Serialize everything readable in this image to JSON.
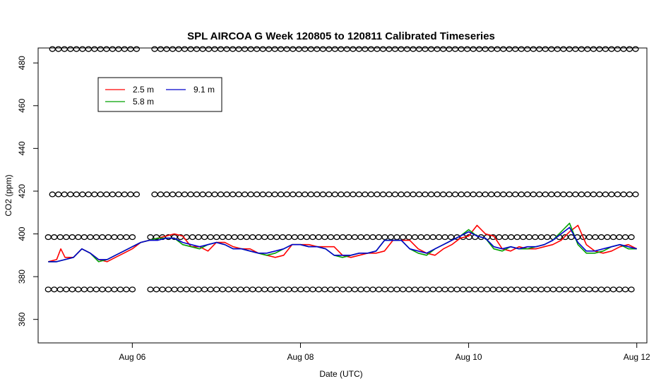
{
  "chart_data": {
    "type": "line",
    "title": "SPL AIRCOA G  Week 120805 to 120811  Calibrated Timeseries",
    "xlabel": "Date (UTC)",
    "ylabel": "CO2 (ppm)",
    "xlim": [
      0,
      7.0
    ],
    "ylim": [
      350,
      490
    ],
    "x_ticks": [
      {
        "value": 1,
        "label": "Aug 06"
      },
      {
        "value": 3,
        "label": "Aug 08"
      },
      {
        "value": 5,
        "label": "Aug 10"
      },
      {
        "value": 7,
        "label": "Aug 12"
      }
    ],
    "y_ticks": [
      {
        "value": 360,
        "label": "360"
      },
      {
        "value": 380,
        "label": "380"
      },
      {
        "value": 400,
        "label": "400"
      },
      {
        "value": 420,
        "label": "420"
      },
      {
        "value": 440,
        "label": "440"
      },
      {
        "value": 460,
        "label": "460"
      },
      {
        "value": 480,
        "label": "480"
      }
    ],
    "grid": false,
    "legend": "top-left",
    "series": [
      {
        "name": "2.5 m",
        "color": "#ff0000",
        "x": [
          0,
          0.1,
          0.15,
          0.2,
          0.3,
          0.4,
          0.5,
          0.6,
          0.7,
          0.8,
          0.9,
          1.0,
          1.1,
          1.2,
          1.3,
          1.4,
          1.5,
          1.6,
          1.7,
          1.8,
          1.9,
          2.0,
          2.1,
          2.2,
          2.3,
          2.4,
          2.5,
          2.6,
          2.7,
          2.8,
          2.9,
          3.0,
          3.1,
          3.2,
          3.3,
          3.4,
          3.5,
          3.6,
          3.7,
          3.8,
          3.9,
          4.0,
          4.1,
          4.2,
          4.3,
          4.4,
          4.5,
          4.6,
          4.7,
          4.8,
          4.9,
          5.0,
          5.1,
          5.2,
          5.3,
          5.4,
          5.5,
          5.6,
          5.7,
          5.8,
          5.9,
          6.0,
          6.1,
          6.2,
          6.3,
          6.4,
          6.5,
          6.6,
          6.7,
          6.8,
          6.9,
          7.0
        ],
        "values": [
          387,
          388,
          393,
          389,
          389,
          393,
          391,
          388,
          387,
          389,
          391,
          393,
          396,
          397,
          398,
          399,
          400,
          399,
          394,
          394,
          392,
          396,
          396,
          394,
          393,
          393,
          391,
          390,
          389,
          390,
          395,
          395,
          395,
          394,
          394,
          394,
          390,
          389,
          390,
          391,
          391,
          392,
          397,
          397,
          397,
          393,
          391,
          390,
          393,
          395,
          398,
          399,
          404,
          400,
          399,
          393,
          392,
          394,
          393,
          393,
          394,
          395,
          397,
          401,
          404,
          395,
          392,
          391,
          392,
          394,
          395,
          393
        ]
      },
      {
        "name": "5.8 m",
        "color": "#00a000",
        "x": [
          0,
          0.1,
          0.2,
          0.3,
          0.4,
          0.5,
          0.6,
          0.7,
          0.8,
          0.9,
          1.0,
          1.1,
          1.2,
          1.3,
          1.4,
          1.5,
          1.6,
          1.7,
          1.8,
          1.9,
          2.0,
          2.1,
          2.2,
          2.3,
          2.4,
          2.5,
          2.6,
          2.7,
          2.8,
          2.9,
          3.0,
          3.1,
          3.2,
          3.3,
          3.4,
          3.5,
          3.6,
          3.7,
          3.8,
          3.9,
          4.0,
          4.1,
          4.2,
          4.3,
          4.4,
          4.5,
          4.6,
          4.7,
          4.8,
          4.9,
          5.0,
          5.1,
          5.2,
          5.3,
          5.4,
          5.5,
          5.6,
          5.7,
          5.8,
          5.9,
          6.0,
          6.1,
          6.2,
          6.3,
          6.4,
          6.5,
          6.6,
          6.7,
          6.8,
          6.9,
          7.0
        ],
        "values": [
          387,
          387,
          388,
          389,
          393,
          391,
          387,
          388,
          390,
          392,
          394,
          396,
          397,
          398,
          398,
          398,
          395,
          394,
          393,
          395,
          396,
          395,
          393,
          393,
          392,
          391,
          390,
          391,
          393,
          395,
          395,
          394,
          394,
          393,
          390,
          389,
          390,
          391,
          391,
          392,
          397,
          397,
          397,
          393,
          391,
          390,
          393,
          395,
          397,
          399,
          402,
          399,
          398,
          393,
          392,
          394,
          393,
          393,
          394,
          395,
          397,
          401,
          405,
          395,
          391,
          391,
          392,
          394,
          395,
          393,
          393
        ]
      },
      {
        "name": "9.1 m",
        "color": "#0000cc",
        "x": [
          0,
          0.1,
          0.2,
          0.3,
          0.4,
          0.5,
          0.6,
          0.7,
          0.8,
          0.9,
          1.0,
          1.1,
          1.2,
          1.3,
          1.4,
          1.5,
          1.6,
          1.7,
          1.8,
          1.9,
          2.0,
          2.1,
          2.2,
          2.3,
          2.4,
          2.5,
          2.6,
          2.7,
          2.8,
          2.9,
          3.0,
          3.1,
          3.2,
          3.3,
          3.4,
          3.5,
          3.6,
          3.7,
          3.8,
          3.9,
          4.0,
          4.1,
          4.2,
          4.3,
          4.4,
          4.5,
          4.6,
          4.7,
          4.8,
          4.9,
          5.0,
          5.1,
          5.2,
          5.3,
          5.4,
          5.5,
          5.6,
          5.7,
          5.8,
          5.9,
          6.0,
          6.1,
          6.2,
          6.3,
          6.4,
          6.5,
          6.6,
          6.7,
          6.8,
          6.9,
          7.0
        ],
        "values": [
          387,
          387,
          388,
          389,
          393,
          391,
          388,
          388,
          390,
          392,
          394,
          396,
          397,
          397,
          398,
          398,
          396,
          395,
          394,
          395,
          396,
          395,
          393,
          393,
          392,
          391,
          391,
          392,
          393,
          395,
          395,
          394,
          394,
          393,
          390,
          390,
          390,
          391,
          391,
          392,
          397,
          397,
          397,
          393,
          392,
          391,
          393,
          395,
          397,
          399,
          401,
          399,
          398,
          394,
          393,
          394,
          393,
          394,
          394,
          395,
          397,
          400,
          403,
          396,
          392,
          392,
          393,
          394,
          395,
          394,
          393
        ]
      }
    ],
    "reference_markers": [
      {
        "y": 374,
        "x_start": 0,
        "x_end": 7.0,
        "gaps": [
          [
            1.07,
            1.2
          ]
        ]
      },
      {
        "y": 398.5,
        "x_start": 0,
        "x_end": 7.0,
        "gaps": [
          [
            1.07,
            1.2
          ]
        ]
      },
      {
        "y": 418.5,
        "x_start": 0.05,
        "x_end": 7.0,
        "gaps": [
          [
            1.07,
            1.2
          ]
        ]
      },
      {
        "y": 486.5,
        "x_start": 0.05,
        "x_end": 7.0,
        "gaps": [
          [
            1.07,
            1.2
          ]
        ]
      }
    ]
  }
}
